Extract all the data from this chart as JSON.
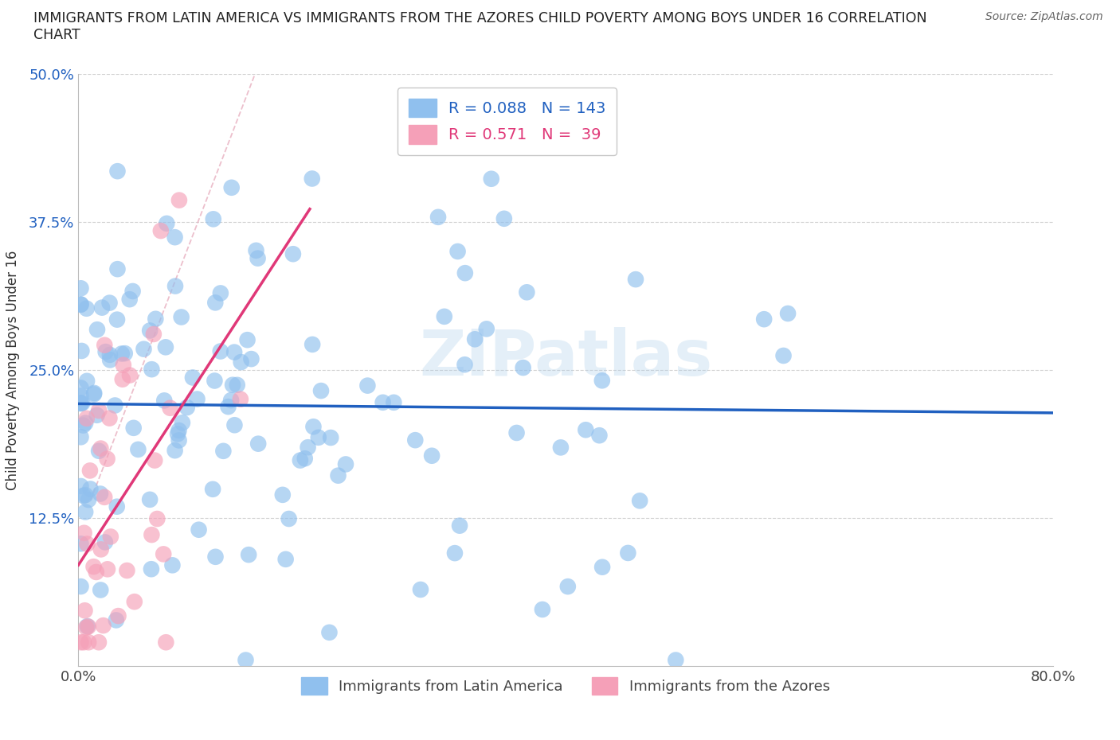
{
  "title_line1": "IMMIGRANTS FROM LATIN AMERICA VS IMMIGRANTS FROM THE AZORES CHILD POVERTY AMONG BOYS UNDER 16 CORRELATION",
  "title_line2": "CHART",
  "source": "Source: ZipAtlas.com",
  "ylabel": "Child Poverty Among Boys Under 16",
  "xlim": [
    0.0,
    0.8
  ],
  "ylim": [
    0.0,
    0.5
  ],
  "yticks": [
    0.0,
    0.125,
    0.25,
    0.375,
    0.5
  ],
  "ytick_labels": [
    "",
    "12.5%",
    "25.0%",
    "37.5%",
    "50.0%"
  ],
  "xticks": [
    0.0,
    0.1,
    0.2,
    0.3,
    0.4,
    0.5,
    0.6,
    0.7,
    0.8
  ],
  "xtick_labels": [
    "0.0%",
    "",
    "",
    "",
    "",
    "",
    "",
    "",
    "80.0%"
  ],
  "blue_color": "#90C0EE",
  "pink_color": "#F5A0B8",
  "blue_line_color": "#2060C0",
  "pink_line_color": "#E03878",
  "ref_line_color": "#D0A0B0",
  "grid_color": "#C8C8C8",
  "legend_R_blue": "R = 0.088",
  "legend_N_blue": "N = 143",
  "legend_R_pink": "R = 0.571",
  "legend_N_pink": "N =  39",
  "blue_label": "Immigrants from Latin America",
  "pink_label": "Immigrants from the Azores",
  "seed": 12345
}
